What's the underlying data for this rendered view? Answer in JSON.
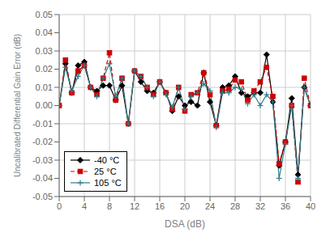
{
  "chart_data": {
    "type": "line",
    "xlabel": "DSA (dB)",
    "ylabel": "Uncalibrated Differential Gain Error (dB)",
    "x": [
      0,
      1,
      2,
      3,
      4,
      5,
      6,
      7,
      8,
      9,
      10,
      11,
      12,
      13,
      14,
      15,
      16,
      17,
      18,
      19,
      20,
      21,
      22,
      23,
      24,
      25,
      26,
      27,
      28,
      29,
      30,
      31,
      32,
      33,
      34,
      35,
      36,
      37,
      38,
      39,
      40
    ],
    "series": [
      {
        "name": "-40 °C",
        "color": "#000000",
        "marker": "diamond",
        "line_style": "solid",
        "values": [
          0.0,
          0.023,
          0.007,
          0.022,
          0.024,
          0.01,
          0.008,
          0.011,
          0.011,
          0.003,
          0.011,
          -0.01,
          0.019,
          0.013,
          0.008,
          0.007,
          0.013,
          0.007,
          -0.003,
          0.005,
          0.0,
          0.002,
          0.0,
          0.018,
          0.002,
          -0.011,
          0.01,
          0.011,
          0.016,
          0.007,
          0.005,
          0.007,
          0.007,
          0.028,
          0.002,
          -0.033,
          -0.02,
          0.004,
          -0.038,
          0.01,
          0.0
        ]
      },
      {
        "name": "25 °C",
        "color": "#cc0000",
        "marker": "square",
        "line_style": "dashed",
        "values": [
          0.0,
          0.025,
          0.007,
          0.019,
          0.022,
          0.01,
          0.006,
          0.015,
          0.029,
          0.003,
          0.015,
          -0.01,
          0.019,
          0.016,
          0.01,
          0.006,
          0.013,
          0.007,
          -0.002,
          0.01,
          -0.003,
          0.006,
          0.007,
          0.018,
          0.006,
          -0.011,
          0.008,
          0.009,
          0.014,
          0.013,
          0.003,
          0.008,
          0.013,
          0.021,
          0.005,
          -0.032,
          -0.02,
          0.0,
          -0.042,
          0.015,
          0.0
        ]
      },
      {
        "name": "105 °C",
        "color": "#2e7d8a",
        "marker": "plus",
        "line_style": "solid",
        "values": [
          0.0,
          0.021,
          0.008,
          0.016,
          0.022,
          0.01,
          0.005,
          0.015,
          0.023,
          0.005,
          0.015,
          -0.01,
          0.019,
          0.016,
          0.01,
          0.005,
          0.013,
          0.006,
          -0.001,
          0.01,
          -0.002,
          0.005,
          0.007,
          0.012,
          0.008,
          -0.012,
          0.007,
          0.007,
          0.01,
          0.009,
          0.001,
          0.006,
          0.0,
          0.006,
          0.002,
          -0.04,
          -0.021,
          0.0,
          -0.04,
          0.01,
          0.0
        ]
      }
    ],
    "xlim": [
      0,
      40
    ],
    "ylim": [
      -0.05,
      0.05
    ],
    "xticks": [
      0,
      4,
      8,
      12,
      16,
      20,
      24,
      28,
      32,
      36,
      40
    ],
    "yticks": [
      -0.05,
      -0.04,
      -0.03,
      -0.02,
      -0.01,
      {
        "value": 0.0,
        "label": "0.00"
      },
      0.01,
      0.02,
      0.03,
      0.04,
      0.05
    ],
    "grid": true,
    "legend": "lower left"
  }
}
